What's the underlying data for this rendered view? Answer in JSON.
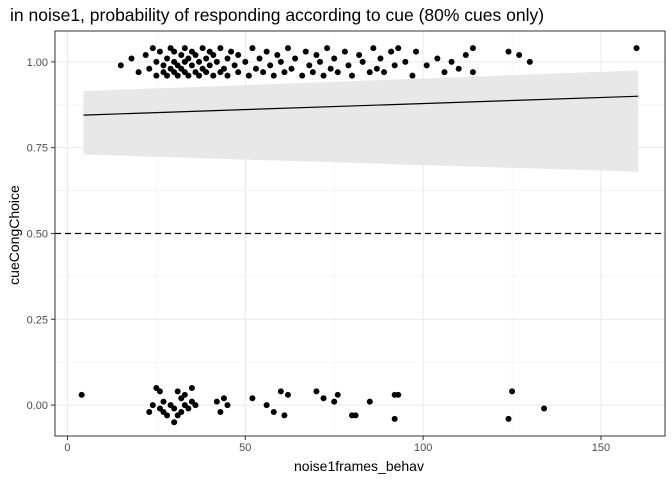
{
  "chart_data": {
    "type": "scatter",
    "title": "in noise1, probability of responding according to cue (80% cues only)",
    "xlabel": "noise1frames_behav",
    "ylabel": "cueCongChoice",
    "xlim": [
      -3.5,
      168
    ],
    "ylim": [
      -0.09,
      1.09
    ],
    "x_ticks": [
      0,
      50,
      100,
      150
    ],
    "x_tick_labels": [
      "0",
      "50",
      "100",
      "150"
    ],
    "y_ticks": [
      0.0,
      0.25,
      0.5,
      0.75,
      1.0
    ],
    "y_tick_labels": [
      "0.00",
      "0.25",
      "0.50",
      "0.75",
      "1.00"
    ],
    "grid": true,
    "background": "#ffffff",
    "point_color": "#000000",
    "ribbon_color": "#e8e8e8",
    "reference_line": {
      "y": 0.5,
      "style": "dashed",
      "color": "#000000"
    },
    "fit_line": {
      "method": "linear",
      "x": [
        4.5,
        160.5
      ],
      "y": [
        0.845,
        0.9
      ],
      "ci_lower": [
        0.73,
        0.68
      ],
      "ci_upper": [
        0.915,
        0.975
      ]
    },
    "series": [
      {
        "points": [
          [
            15,
            0.99
          ],
          [
            18,
            1.01
          ],
          [
            20,
            0.97
          ],
          [
            22,
            1.02
          ],
          [
            23,
            0.98
          ],
          [
            24,
            1.04
          ],
          [
            25,
            0.96
          ],
          [
            25,
            1.0
          ],
          [
            26,
            1.03
          ],
          [
            27,
            0.97
          ],
          [
            27,
            0.99
          ],
          [
            28,
            1.01
          ],
          [
            28,
            0.96
          ],
          [
            29,
            1.04
          ],
          [
            29,
            0.98
          ],
          [
            30,
            1.0
          ],
          [
            30,
            0.97
          ],
          [
            30,
            1.03
          ],
          [
            31,
            0.99
          ],
          [
            31,
            0.96
          ],
          [
            32,
            1.02
          ],
          [
            32,
            0.98
          ],
          [
            33,
            1.04
          ],
          [
            33,
            1.0
          ],
          [
            33,
            0.97
          ],
          [
            34,
            1.01
          ],
          [
            34,
            0.96
          ],
          [
            35,
            1.03
          ],
          [
            35,
            0.99
          ],
          [
            36,
            0.97
          ],
          [
            36,
            1.02
          ],
          [
            37,
            1.0
          ],
          [
            37,
            0.96
          ],
          [
            38,
            1.04
          ],
          [
            38,
            0.98
          ],
          [
            39,
            1.01
          ],
          [
            39,
            0.97
          ],
          [
            40,
            1.03
          ],
          [
            40,
            0.99
          ],
          [
            41,
            0.96
          ],
          [
            41,
            1.02
          ],
          [
            42,
            1.0
          ],
          [
            43,
            0.97
          ],
          [
            43,
            1.04
          ],
          [
            44,
            0.98
          ],
          [
            45,
            1.01
          ],
          [
            45,
            0.96
          ],
          [
            46,
            1.03
          ],
          [
            47,
            0.99
          ],
          [
            48,
            0.97
          ],
          [
            48,
            1.02
          ],
          [
            50,
            1.0
          ],
          [
            51,
            0.96
          ],
          [
            52,
            1.04
          ],
          [
            53,
            0.98
          ],
          [
            54,
            1.01
          ],
          [
            55,
            0.97
          ],
          [
            56,
            1.03
          ],
          [
            57,
            0.99
          ],
          [
            58,
            0.96
          ],
          [
            59,
            1.02
          ],
          [
            60,
            1.0
          ],
          [
            61,
            0.97
          ],
          [
            62,
            1.04
          ],
          [
            63,
            0.98
          ],
          [
            64,
            1.01
          ],
          [
            66,
            0.96
          ],
          [
            67,
            1.03
          ],
          [
            68,
            0.99
          ],
          [
            69,
            0.97
          ],
          [
            70,
            1.02
          ],
          [
            71,
            1.0
          ],
          [
            72,
            0.96
          ],
          [
            73,
            1.04
          ],
          [
            74,
            0.98
          ],
          [
            75,
            1.01
          ],
          [
            76,
            0.97
          ],
          [
            78,
            1.03
          ],
          [
            79,
            0.99
          ],
          [
            80,
            0.96
          ],
          [
            82,
            1.02
          ],
          [
            83,
            1.0
          ],
          [
            85,
            0.97
          ],
          [
            86,
            1.04
          ],
          [
            87,
            0.98
          ],
          [
            88,
            1.01
          ],
          [
            89,
            0.97
          ],
          [
            91,
            1.03
          ],
          [
            92,
            0.99
          ],
          [
            93,
            1.04
          ],
          [
            95,
            1.0
          ],
          [
            97,
            0.96
          ],
          [
            98,
            1.03
          ],
          [
            101,
            0.99
          ],
          [
            104,
            1.01
          ],
          [
            106,
            0.97
          ],
          [
            108,
            1.0
          ],
          [
            110,
            0.98
          ],
          [
            112,
            1.02
          ],
          [
            114,
            1.04
          ],
          [
            114,
            0.97
          ],
          [
            124,
            1.03
          ],
          [
            127,
            1.02
          ],
          [
            130,
            1.0
          ],
          [
            160,
            1.04
          ]
        ]
      },
      {
        "points": [
          [
            4,
            0.03
          ],
          [
            23,
            -0.02
          ],
          [
            24,
            0.0
          ],
          [
            25,
            0.05
          ],
          [
            26,
            0.04
          ],
          [
            26,
            -0.01
          ],
          [
            27,
            0.01
          ],
          [
            27,
            -0.02
          ],
          [
            28,
            -0.03
          ],
          [
            29,
            0.0
          ],
          [
            30,
            -0.05
          ],
          [
            30,
            -0.01
          ],
          [
            31,
            0.04
          ],
          [
            31,
            -0.03
          ],
          [
            32,
            0.02
          ],
          [
            32,
            -0.02
          ],
          [
            33,
            0.0
          ],
          [
            33,
            0.03
          ],
          [
            34,
            -0.01
          ],
          [
            35,
            0.05
          ],
          [
            35,
            0.01
          ],
          [
            36,
            0.0
          ],
          [
            42,
            0.01
          ],
          [
            43,
            -0.02
          ],
          [
            44,
            0.02
          ],
          [
            45,
            0.0
          ],
          [
            52,
            0.02
          ],
          [
            56,
            0.0
          ],
          [
            58,
            -0.02
          ],
          [
            60,
            0.04
          ],
          [
            61,
            -0.03
          ],
          [
            62,
            0.03
          ],
          [
            70,
            0.04
          ],
          [
            72,
            0.02
          ],
          [
            75,
            0.01
          ],
          [
            76,
            0.03
          ],
          [
            80,
            -0.03
          ],
          [
            81,
            -0.03
          ],
          [
            85,
            0.01
          ],
          [
            92,
            0.03
          ],
          [
            92,
            -0.04
          ],
          [
            93,
            0.03
          ],
          [
            124,
            -0.04
          ],
          [
            125,
            0.04
          ],
          [
            134,
            -0.01
          ]
        ]
      }
    ]
  }
}
